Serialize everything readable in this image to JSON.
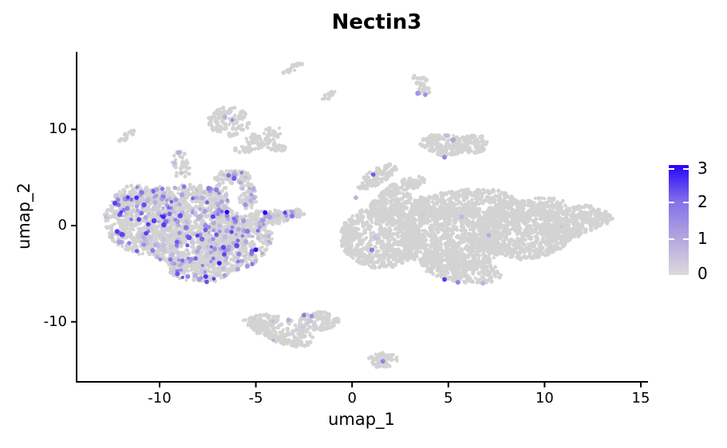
{
  "title": "Nectin3",
  "chart_data": {
    "type": "scatter",
    "title": "Nectin3",
    "xlabel": "umap_1",
    "ylabel": "umap_2",
    "x_ticks": [
      "-10",
      "-5",
      "0",
      "5",
      "10",
      "15"
    ],
    "x_tick_values": [
      -10,
      -5,
      0,
      5,
      10,
      15
    ],
    "y_ticks": [
      "10",
      "0",
      "-10"
    ],
    "y_tick_values": [
      10,
      0,
      -10
    ],
    "xlim": [
      -14.3,
      15.4
    ],
    "ylim": [
      -16.3,
      18.1
    ],
    "grid": false,
    "background": "#ffffff",
    "axis_color": "#000000",
    "point_color_zero": "#D3D3D3",
    "legend": {
      "position": "right",
      "range": [
        0,
        3
      ],
      "tick_labels": [
        "3",
        "2",
        "1",
        "0"
      ],
      "tick_values": [
        3,
        2,
        1,
        0
      ],
      "color_stops": [
        "#DCDADC",
        "#B2A7DE",
        "#8470EA",
        "#2505FB"
      ]
    },
    "clusters": [
      {
        "name": "left-body-west",
        "cx": -10.6,
        "cy": 0.3,
        "rx": 2.3,
        "ry": 3.4,
        "rot": 8,
        "n": 520,
        "cf": 0.2
      },
      {
        "name": "left-body-mid",
        "cx": -8.2,
        "cy": -0.8,
        "rx": 2.6,
        "ry": 3.6,
        "rot": -5,
        "n": 620,
        "cf": 0.2
      },
      {
        "name": "left-body-east",
        "cx": -6.1,
        "cy": -1.8,
        "rx": 2.0,
        "ry": 2.8,
        "rot": -15,
        "n": 380,
        "cf": 0.18
      },
      {
        "name": "left-bottom-point",
        "cx": -7.8,
        "cy": -4.6,
        "rx": 1.7,
        "ry": 1.3,
        "rot": 0,
        "n": 150,
        "cf": 0.2
      },
      {
        "name": "left-head-nw",
        "cx": -11.3,
        "cy": 2.7,
        "rx": 1.05,
        "ry": 1.5,
        "rot": 0,
        "n": 100,
        "cf": 0.25
      },
      {
        "name": "left-top-bumps",
        "cx": -8.8,
        "cy": 3.4,
        "rx": 1.7,
        "ry": 0.9,
        "rot": 0,
        "n": 120,
        "cf": 0.2
      },
      {
        "name": "hook-left-leg",
        "cx": -7.0,
        "cy": 2.5,
        "rx": 0.55,
        "ry": 1.9,
        "rot": 12,
        "n": 85,
        "cf": 0.25
      },
      {
        "name": "hook-top",
        "cx": -6.2,
        "cy": 5.0,
        "rx": 1.0,
        "ry": 0.75,
        "rot": 0,
        "n": 60,
        "cf": 0.2
      },
      {
        "name": "hook-right-leg",
        "cx": -5.4,
        "cy": 3.0,
        "rx": 0.5,
        "ry": 1.4,
        "rot": -8,
        "n": 55,
        "cf": 0.2
      },
      {
        "name": "east-arm",
        "cx": -4.3,
        "cy": 0.9,
        "rx": 1.05,
        "ry": 0.75,
        "rot": 0,
        "n": 85,
        "cf": 0.15
      },
      {
        "name": "east-arm-tip",
        "cx": -3.2,
        "cy": 1.2,
        "rx": 0.8,
        "ry": 0.4,
        "rot": -8,
        "n": 38,
        "cf": 0.1
      },
      {
        "name": "neck-chain",
        "cx": -8.9,
        "cy": 6.3,
        "rx": 0.5,
        "ry": 1.5,
        "rot": -12,
        "n": 32,
        "cf": 0.1
      },
      {
        "name": "nw-dash",
        "cx": -11.7,
        "cy": 9.3,
        "rx": 0.55,
        "ry": 0.3,
        "rot": -32,
        "n": 15,
        "cf": 0
      },
      {
        "name": "topmid-head",
        "cx": -6.4,
        "cy": 10.8,
        "rx": 1.1,
        "ry": 1.5,
        "rot": 0,
        "n": 120,
        "cf": 0.01
      },
      {
        "name": "topmid-tail",
        "cx": -4.8,
        "cy": 8.9,
        "rx": 1.4,
        "ry": 0.85,
        "rot": -22,
        "n": 85,
        "cf": 0
      },
      {
        "name": "topmid-tip",
        "cx": -3.9,
        "cy": 8.1,
        "rx": 0.6,
        "ry": 0.5,
        "rot": 0,
        "n": 24,
        "cf": 0
      },
      {
        "name": "top-dash-a",
        "cx": -3.1,
        "cy": 16.3,
        "rx": 0.6,
        "ry": 0.32,
        "rot": -30,
        "n": 17,
        "cf": 0
      },
      {
        "name": "top-dash-b",
        "cx": -1.2,
        "cy": 13.5,
        "rx": 0.5,
        "ry": 0.28,
        "rot": -30,
        "n": 12,
        "cf": 0
      },
      {
        "name": "s-blob-upper",
        "cx": 3.55,
        "cy": 15.2,
        "rx": 0.42,
        "ry": 0.55,
        "rot": 15,
        "n": 15,
        "cf": 0
      },
      {
        "name": "s-blob-lower",
        "cx": 3.8,
        "cy": 14.1,
        "rx": 0.45,
        "ry": 0.6,
        "rot": -10,
        "n": 17,
        "cf": 0.05
      },
      {
        "name": "topright-main",
        "cx": 4.8,
        "cy": 8.4,
        "rx": 1.25,
        "ry": 1.15,
        "rot": 0,
        "n": 150,
        "cf": 0.015
      },
      {
        "name": "topright-east",
        "cx": 6.2,
        "cy": 8.5,
        "rx": 0.95,
        "ry": 0.95,
        "rot": 0,
        "n": 95,
        "cf": 0
      },
      {
        "name": "right-beak",
        "cx": 1.3,
        "cy": 5.1,
        "rx": 1.15,
        "ry": 0.8,
        "rot": -28,
        "n": 85,
        "cf": 0
      },
      {
        "name": "right-beak-slope",
        "cx": 2.6,
        "cy": 4.0,
        "rx": 1.3,
        "ry": 0.7,
        "rot": -20,
        "n": 95,
        "cf": 0
      },
      {
        "name": "right-body-west",
        "cx": 1.5,
        "cy": -1.2,
        "rx": 2.1,
        "ry": 3.2,
        "rot": 0,
        "n": 650,
        "cf": 0.004
      },
      {
        "name": "right-west-top",
        "cx": 2.5,
        "cy": 1.8,
        "rx": 1.6,
        "ry": 1.6,
        "rot": 0,
        "n": 250,
        "cf": 0
      },
      {
        "name": "right-body-mid",
        "cx": 5.2,
        "cy": -1.5,
        "rx": 2.6,
        "ry": 3.4,
        "rot": 0,
        "n": 800,
        "cf": 0.003
      },
      {
        "name": "right-top-mid",
        "cx": 5.8,
        "cy": 2.2,
        "rx": 2.8,
        "ry": 1.5,
        "rot": -5,
        "n": 400,
        "cf": 0
      },
      {
        "name": "right-body-east",
        "cx": 8.8,
        "cy": -0.8,
        "rx": 2.6,
        "ry": 2.7,
        "rot": 0,
        "n": 680,
        "cf": 0.002
      },
      {
        "name": "right-top-east",
        "cx": 9.0,
        "cy": 1.5,
        "rx": 2.2,
        "ry": 1.2,
        "rot": -10,
        "n": 250,
        "cf": 0
      },
      {
        "name": "right-taper",
        "cx": 11.4,
        "cy": 0.3,
        "rx": 1.7,
        "ry": 1.6,
        "rot": -15,
        "n": 250,
        "cf": 0
      },
      {
        "name": "right-tip",
        "cx": 12.7,
        "cy": 0.8,
        "rx": 0.85,
        "ry": 0.8,
        "rot": 0,
        "n": 70,
        "cf": 0
      },
      {
        "name": "right-bottom",
        "cx": 5.6,
        "cy": -4.4,
        "rx": 2.2,
        "ry": 1.5,
        "rot": 8,
        "n": 240,
        "cf": 0.008
      },
      {
        "name": "botmid-crescent",
        "cx": -3.7,
        "cy": -10.9,
        "rx": 1.75,
        "ry": 1.35,
        "rot": 18,
        "n": 210,
        "cf": 0.02
      },
      {
        "name": "botmid-east",
        "cx": -1.8,
        "cy": -9.9,
        "rx": 1.15,
        "ry": 0.95,
        "rot": 0,
        "n": 105,
        "cf": 0.02
      },
      {
        "name": "botmid-tail",
        "cx": -5.0,
        "cy": -10.3,
        "rx": 0.7,
        "ry": 0.5,
        "rot": 20,
        "n": 28,
        "cf": 0
      },
      {
        "name": "bottom-small",
        "cx": 1.6,
        "cy": -14.0,
        "rx": 0.8,
        "ry": 0.8,
        "rot": 0,
        "n": 58,
        "cf": 0.02
      }
    ],
    "highlight_points": [
      {
        "x": -6.5,
        "y": 1.4,
        "v": 3.0
      },
      {
        "x": -4.52,
        "y": 1.35,
        "v": 3.0
      },
      {
        "x": -11.2,
        "y": 2.9,
        "v": 2.6
      },
      {
        "x": -9.8,
        "y": 0.9,
        "v": 2.7
      },
      {
        "x": -6.9,
        "y": -3.9,
        "v": 2.8
      },
      {
        "x": -5.0,
        "y": -2.5,
        "v": 2.9
      },
      {
        "x": -12.2,
        "y": -0.6,
        "v": 2.5
      },
      {
        "x": -7.6,
        "y": -5.3,
        "v": 2.6
      },
      {
        "x": -9.0,
        "y": 7.6,
        "v": 0.9
      },
      {
        "x": -6.6,
        "y": 11.3,
        "v": 0.8
      },
      {
        "x": 3.8,
        "y": 13.6,
        "v": 1.4
      },
      {
        "x": 4.8,
        "y": 7.1,
        "v": 1.6
      },
      {
        "x": 1.1,
        "y": 5.3,
        "v": 2.2
      },
      {
        "x": 0.2,
        "y": 2.9,
        "v": 0.8
      },
      {
        "x": 7.1,
        "y": -1.0,
        "v": 0.9
      },
      {
        "x": 4.8,
        "y": -5.6,
        "v": 2.5
      },
      {
        "x": 5.5,
        "y": -5.9,
        "v": 1.7
      },
      {
        "x": 6.8,
        "y": -6.0,
        "v": 0.8
      },
      {
        "x": -3.3,
        "y": -9.8,
        "v": 0.9
      },
      {
        "x": -2.5,
        "y": -9.3,
        "v": 1.8
      },
      {
        "x": -2.1,
        "y": -9.4,
        "v": 1.4
      },
      {
        "x": 1.6,
        "y": -14.1,
        "v": 1.7
      }
    ]
  }
}
